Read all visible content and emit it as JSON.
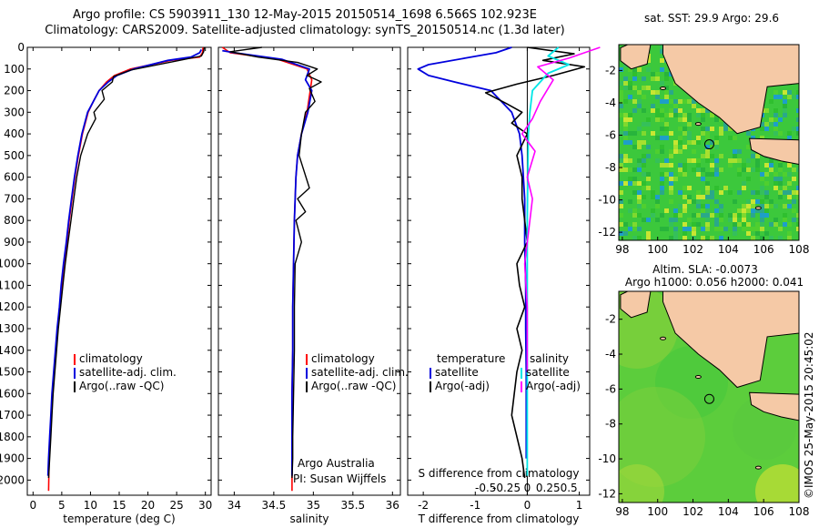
{
  "header": {
    "title_line1": "Argo profile: CS 5903911_130 12-May-2015 20150514_1698 6.566S 102.923E",
    "title_line2": "Climatology: CARS2009. Satellite-adjusted climatology: synTS_20150514.nc (1.3d later)"
  },
  "colors": {
    "climatology": "#ff0000",
    "satellite": "#0000dd",
    "argo": "#000000",
    "sat_salinity": "#00e6e6",
    "argo_salinity": "#ff00ff",
    "land": "#f5c9a6",
    "sea_map_base": "#3cc83c",
    "sea_alt_base": "#5ccd3c"
  },
  "depth_axis": {
    "ticks": [
      "0",
      "100",
      "200",
      "300",
      "400",
      "500",
      "600",
      "700",
      "800",
      "900",
      "1000",
      "1100",
      "1200",
      "1300",
      "1400",
      "1500",
      "1600",
      "1700",
      "1800",
      "1900",
      "2000"
    ]
  },
  "chart_data": [
    {
      "type": "line",
      "panel": "temperature",
      "xlabel": "temperature (deg C)",
      "ylabel": "",
      "xlim": [
        -1,
        31
      ],
      "ylim": [
        2070,
        0
      ],
      "x_ticks": [
        "0",
        "5",
        "10",
        "15",
        "20",
        "25",
        "30"
      ],
      "legend": [
        "climatology",
        "satellite-adj. clim.",
        "Argo(..raw -QC)"
      ],
      "series": [
        {
          "name": "climatology",
          "x": [
            29.6,
            29.5,
            29.0,
            24.0,
            17.0,
            14.2,
            12.8,
            11.5,
            10.5,
            9.6,
            8.6,
            7.9,
            7.3,
            6.8,
            6.3,
            5.9,
            5.4,
            5.0,
            4.7,
            4.3,
            4.0,
            3.7,
            3.4,
            3.2,
            3.0,
            2.8,
            2.7
          ],
          "y": [
            0,
            25,
            45,
            60,
            100,
            130,
            160,
            200,
            250,
            300,
            400,
            500,
            600,
            700,
            800,
            900,
            1000,
            1100,
            1200,
            1300,
            1400,
            1500,
            1600,
            1700,
            1800,
            1900,
            2050
          ]
        },
        {
          "name": "satellite-adj. clim.",
          "x": [
            29.3,
            29.0,
            27.5,
            23.5,
            17.5,
            14.6,
            13.1,
            11.5,
            10.5,
            9.5,
            8.5,
            7.8,
            7.2,
            6.7,
            6.2,
            5.8,
            5.3,
            4.9,
            4.6,
            4.2,
            3.9,
            3.6,
            3.3,
            3.1,
            2.9,
            2.7,
            2.6
          ],
          "y": [
            10,
            25,
            45,
            60,
            100,
            130,
            160,
            200,
            250,
            300,
            400,
            500,
            600,
            700,
            800,
            900,
            1000,
            1100,
            1200,
            1300,
            1400,
            1500,
            1600,
            1700,
            1800,
            1900,
            1980
          ]
        },
        {
          "name": "Argo(..raw -QC)",
          "x": [
            29.8,
            29.7,
            29.3,
            25.5,
            17.0,
            14.0,
            13.8,
            12.0,
            12.4,
            10.6,
            10.9,
            9.5,
            8.3,
            7.6,
            7.1,
            6.6,
            6.1,
            5.6,
            5.2,
            4.8,
            4.4,
            4.1,
            3.8,
            3.5,
            3.3,
            3.1,
            2.9,
            2.7
          ],
          "y": [
            0,
            20,
            40,
            60,
            105,
            135,
            160,
            200,
            240,
            300,
            330,
            400,
            500,
            600,
            700,
            800,
            900,
            1000,
            1100,
            1200,
            1300,
            1400,
            1500,
            1600,
            1700,
            1800,
            1900,
            1990
          ]
        }
      ]
    },
    {
      "type": "line",
      "panel": "salinity",
      "xlabel": "salinity",
      "ylabel": "",
      "xlim": [
        33.8,
        36.1
      ],
      "ylim": [
        2070,
        0
      ],
      "x_ticks": [
        "34",
        "34.5",
        "35",
        "35.5",
        "36"
      ],
      "legend": [
        "climatology",
        "satellite-adj. clim.",
        "Argo(..raw -QC)"
      ],
      "annotations": [
        "Argo Australia",
        "PI: Susan Wijffels"
      ],
      "series": [
        {
          "name": "climatology",
          "x": [
            33.85,
            33.95,
            34.55,
            34.92,
            34.98,
            34.96,
            34.92,
            34.85,
            34.8,
            34.78,
            34.76,
            34.75,
            34.74,
            34.74,
            34.73,
            34.73,
            34.73
          ],
          "y": [
            0,
            25,
            55,
            100,
            150,
            200,
            300,
            400,
            500,
            600,
            800,
            1000,
            1200,
            1400,
            1600,
            1800,
            2050
          ]
        },
        {
          "name": "satellite-adj. clim.",
          "x": [
            33.85,
            34.0,
            34.6,
            34.95,
            34.9,
            34.98,
            34.93,
            34.85,
            34.8,
            34.78,
            34.76,
            34.75,
            34.74,
            34.74,
            34.73,
            34.73,
            34.73
          ],
          "y": [
            15,
            25,
            55,
            100,
            150,
            200,
            300,
            400,
            500,
            600,
            800,
            1000,
            1200,
            1400,
            1600,
            1800,
            1980
          ]
        },
        {
          "name": "Argo(..raw -QC)",
          "x": [
            34.35,
            33.95,
            34.3,
            34.8,
            35.05,
            34.92,
            35.1,
            34.95,
            35.02,
            34.9,
            34.85,
            34.82,
            34.95,
            34.8,
            34.9,
            34.78,
            34.85,
            34.77,
            34.76,
            34.76,
            34.75,
            34.74,
            34.74,
            34.73
          ],
          "y": [
            0,
            20,
            45,
            70,
            100,
            130,
            160,
            190,
            250,
            300,
            400,
            500,
            650,
            700,
            760,
            800,
            900,
            1000,
            1200,
            1400,
            1600,
            1800,
            1900,
            1990
          ]
        }
      ]
    },
    {
      "type": "line",
      "panel": "difference",
      "xlabel": "T difference from climatology",
      "x2label": "S difference from climatology",
      "xlim": [
        -2.3,
        1.2
      ],
      "ylim": [
        2070,
        0
      ],
      "x_ticks": [
        "-2",
        "-1",
        "0",
        "1"
      ],
      "x2_ticks": [
        "-0.5",
        "-0.25",
        "0",
        "0.25",
        "0.5"
      ],
      "legend": [
        "temperature",
        "satellite",
        "Argo(-adj)",
        "salinity",
        "satellite",
        "Argo(-adj)"
      ],
      "series": [
        {
          "name": "temperature satellite",
          "x": [
            -0.3,
            -0.6,
            -1.2,
            -1.9,
            -2.1,
            -1.9,
            -1.4,
            -0.7,
            -0.5,
            -0.3,
            -0.15,
            -0.1,
            -0.05,
            -0.05,
            -0.03,
            -0.03,
            -0.02,
            -0.02,
            -0.02
          ],
          "y": [
            0,
            25,
            50,
            80,
            100,
            130,
            160,
            200,
            250,
            300,
            400,
            500,
            700,
            900,
            1100,
            1300,
            1500,
            1700,
            1900
          ]
        },
        {
          "name": "temperature Argo(-adj)",
          "x": [
            0.0,
            0.9,
            0.3,
            1.1,
            0.5,
            -0.2,
            -0.8,
            -0.4,
            -0.1,
            -0.3,
            0.0,
            -0.2,
            -0.1,
            -0.1,
            -0.05,
            0.0,
            -0.2,
            -0.15,
            -0.05,
            -0.2,
            -0.1,
            -0.2,
            -0.3,
            -0.1,
            -0.05
          ],
          "y": [
            0,
            30,
            60,
            90,
            130,
            170,
            210,
            260,
            300,
            350,
            400,
            500,
            600,
            700,
            800,
            900,
            1000,
            1100,
            1200,
            1300,
            1400,
            1500,
            1700,
            1900,
            1990
          ]
        },
        {
          "name": "salinity satellite",
          "x": [
            0.6,
            0.4,
            0.8,
            0.4,
            0.1,
            0.05,
            0.02,
            0.01,
            0.0,
            0.0,
            0.0,
            0.0
          ],
          "y": [
            0,
            40,
            80,
            120,
            200,
            300,
            400,
            600,
            800,
            1200,
            1600,
            1980
          ]
        },
        {
          "name": "salinity Argo(-adj)",
          "x": [
            1.4,
            0.8,
            0.2,
            0.5,
            0.25,
            0.1,
            -0.1,
            0.15,
            0.0,
            0.1,
            0.05,
            -0.05,
            0.0,
            0.0
          ],
          "y": [
            0,
            50,
            90,
            150,
            250,
            330,
            400,
            480,
            600,
            700,
            800,
            1000,
            1200,
            1500
          ]
        }
      ]
    },
    {
      "type": "heatmap",
      "panel": "sst_map",
      "title": "sat. SST: 29.9 Argo: 29.6",
      "x_ticks": [
        "98",
        "100",
        "102",
        "104",
        "106",
        "108"
      ],
      "y_ticks": [
        "-2",
        "-4",
        "-6",
        "-8",
        "-10",
        "-12"
      ],
      "xlim": [
        97.8,
        108
      ],
      "ylim": [
        -12.5,
        -0.4
      ],
      "marker": {
        "lon": 102.923,
        "lat": -6.566
      }
    },
    {
      "type": "heatmap",
      "panel": "sla_map",
      "title": "Altim. SLA: -0.0073",
      "subtitle": "Argo h1000: 0.056 h2000: 0.041",
      "x_ticks": [
        "98",
        "100",
        "102",
        "104",
        "106",
        "108"
      ],
      "y_ticks": [
        "-2",
        "-4",
        "-6",
        "-8",
        "-10",
        "-12"
      ],
      "xlim": [
        97.8,
        108
      ],
      "ylim": [
        -12.5,
        -0.4
      ],
      "marker": {
        "lon": 102.923,
        "lat": -6.566
      }
    }
  ],
  "footer": {
    "credit": "©IMOS 25-May-2015 20:45:02"
  }
}
